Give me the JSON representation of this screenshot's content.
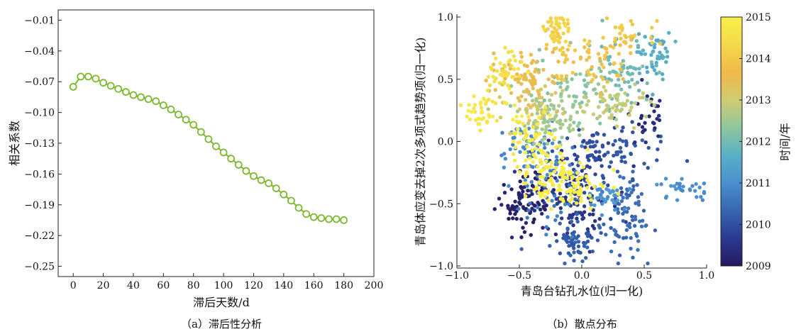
{
  "chart_data": [
    {
      "type": "line",
      "caption": "（a）滞后性分析",
      "xlabel": "滞后天数/d",
      "ylabel": "相关系数",
      "xlim": [
        -10,
        200
      ],
      "ylim": [
        -0.26,
        0.0
      ],
      "xticks": [
        0,
        20,
        40,
        60,
        80,
        100,
        120,
        140,
        160,
        180,
        200
      ],
      "yticks": [
        -0.01,
        -0.04,
        -0.07,
        -0.1,
        -0.13,
        -0.16,
        -0.19,
        -0.22,
        -0.25
      ],
      "ytick_labels": [
        "−0.01",
        "−0.04",
        "−0.07",
        "−0.10",
        "−0.13",
        "−0.16",
        "−0.19",
        "−0.22",
        "−0.25"
      ],
      "color": "#7cb82f",
      "marker": "open-circle",
      "x": [
        0,
        5,
        10,
        15,
        20,
        25,
        30,
        35,
        40,
        45,
        50,
        55,
        60,
        65,
        70,
        75,
        80,
        85,
        90,
        95,
        100,
        105,
        110,
        115,
        120,
        125,
        130,
        135,
        140,
        145,
        150,
        155,
        160,
        165,
        170,
        175,
        180
      ],
      "y": [
        -0.075,
        -0.065,
        -0.065,
        -0.067,
        -0.071,
        -0.074,
        -0.077,
        -0.08,
        -0.083,
        -0.085,
        -0.087,
        -0.089,
        -0.093,
        -0.097,
        -0.102,
        -0.107,
        -0.112,
        -0.119,
        -0.126,
        -0.133,
        -0.139,
        -0.145,
        -0.151,
        -0.157,
        -0.162,
        -0.166,
        -0.169,
        -0.174,
        -0.18,
        -0.186,
        -0.193,
        -0.199,
        -0.202,
        -0.203,
        -0.204,
        -0.204,
        -0.205
      ]
    },
    {
      "type": "scatter",
      "caption": "（b）散点分布",
      "xlabel": "青岛台钻孔水位(归一化)",
      "ylabel": "青岛体应变去掉2次多项式趋势项(归一化)",
      "xlim": [
        -1.0,
        1.0
      ],
      "ylim": [
        -1.0,
        1.0
      ],
      "xticks": [
        -1.0,
        -0.5,
        0.0,
        0.5,
        1.0
      ],
      "xtick_labels": [
        "−1.0",
        "−0.5",
        "0.0",
        "0.5",
        "1.0"
      ],
      "yticks": [
        -1.0,
        -0.5,
        0.0,
        0.5,
        1.0
      ],
      "ytick_labels": [
        "−1.0",
        "−0.5",
        "0.0",
        "0.5",
        "1.0"
      ],
      "colorbar": {
        "label": "时间/年",
        "ticks": [
          2009,
          2010,
          2011,
          2012,
          2013,
          2014,
          2015
        ],
        "range": [
          2009,
          2015
        ],
        "colormap": [
          "#26185f",
          "#2a3a8f",
          "#3866b0",
          "#4b8fcd",
          "#58b0c6",
          "#8fc79e",
          "#cfcc72",
          "#f0b84a",
          "#f4da4a",
          "#f8f04a"
        ]
      },
      "clusters": [
        {
          "year": 2009.2,
          "cx": -0.45,
          "cy": -0.48,
          "sx": 0.12,
          "sy": 0.12,
          "n": 90
        },
        {
          "year": 2009.6,
          "cx": -0.05,
          "cy": -0.45,
          "sx": 0.14,
          "sy": 0.18,
          "n": 100
        },
        {
          "year": 2009.9,
          "cx": 0.0,
          "cy": -0.15,
          "sx": 0.12,
          "sy": 0.16,
          "n": 60
        },
        {
          "year": 2010.1,
          "cx": 0.32,
          "cy": -0.1,
          "sx": 0.16,
          "sy": 0.15,
          "n": 50
        },
        {
          "year": 2009.4,
          "cx": 0.5,
          "cy": 0.2,
          "sx": 0.08,
          "sy": 0.14,
          "n": 30
        },
        {
          "year": 2010.4,
          "cx": 0.35,
          "cy": -0.6,
          "sx": 0.1,
          "sy": 0.15,
          "n": 80
        },
        {
          "year": 2010.2,
          "cx": -0.08,
          "cy": -0.78,
          "sx": 0.1,
          "sy": 0.1,
          "n": 60
        },
        {
          "year": 2010.7,
          "cx": -0.25,
          "cy": -0.35,
          "sx": 0.15,
          "sy": 0.2,
          "n": 60
        },
        {
          "year": 2010.9,
          "cx": -0.45,
          "cy": -0.02,
          "sx": 0.12,
          "sy": 0.1,
          "n": 50
        },
        {
          "year": 2011.1,
          "cx": 0.2,
          "cy": -0.45,
          "sx": 0.12,
          "sy": 0.05,
          "n": 40
        },
        {
          "year": 2011.0,
          "cx": 0.82,
          "cy": -0.38,
          "sx": 0.12,
          "sy": 0.05,
          "n": 30
        },
        {
          "year": 2011.6,
          "cx": 0.58,
          "cy": 0.7,
          "sx": 0.08,
          "sy": 0.1,
          "n": 50
        },
        {
          "year": 2012.0,
          "cx": 0.35,
          "cy": 0.55,
          "sx": 0.12,
          "sy": 0.12,
          "n": 60
        },
        {
          "year": 2012.3,
          "cx": -0.1,
          "cy": 0.4,
          "sx": 0.15,
          "sy": 0.15,
          "n": 60
        },
        {
          "year": 2012.6,
          "cx": -0.25,
          "cy": 0.15,
          "sx": 0.15,
          "sy": 0.12,
          "n": 90
        },
        {
          "year": 2012.9,
          "cx": 0.25,
          "cy": 0.3,
          "sx": 0.16,
          "sy": 0.08,
          "n": 60
        },
        {
          "year": 2013.2,
          "cx": -0.35,
          "cy": 0.35,
          "sx": 0.12,
          "sy": 0.12,
          "n": 50
        },
        {
          "year": 2013.6,
          "cx": -0.45,
          "cy": 0.55,
          "sx": 0.12,
          "sy": 0.1,
          "n": 60
        },
        {
          "year": 2013.9,
          "cx": 0.05,
          "cy": 0.65,
          "sx": 0.18,
          "sy": 0.1,
          "n": 70
        },
        {
          "year": 2014.2,
          "cx": -0.2,
          "cy": 0.9,
          "sx": 0.06,
          "sy": 0.06,
          "n": 40
        },
        {
          "year": 2014.0,
          "cx": 0.35,
          "cy": 0.85,
          "sx": 0.1,
          "sy": 0.06,
          "n": 30
        },
        {
          "year": 2014.5,
          "cx": -0.62,
          "cy": 0.55,
          "sx": 0.06,
          "sy": 0.1,
          "n": 40
        },
        {
          "year": 2014.7,
          "cx": -0.8,
          "cy": 0.25,
          "sx": 0.1,
          "sy": 0.1,
          "n": 40
        },
        {
          "year": 2014.8,
          "cx": -0.42,
          "cy": 0.1,
          "sx": 0.08,
          "sy": 0.1,
          "n": 40
        },
        {
          "year": 2014.9,
          "cx": -0.1,
          "cy": -0.35,
          "sx": 0.15,
          "sy": 0.1,
          "n": 100
        },
        {
          "year": 2014.9,
          "cx": -0.35,
          "cy": -0.18,
          "sx": 0.1,
          "sy": 0.12,
          "n": 40
        }
      ]
    }
  ]
}
